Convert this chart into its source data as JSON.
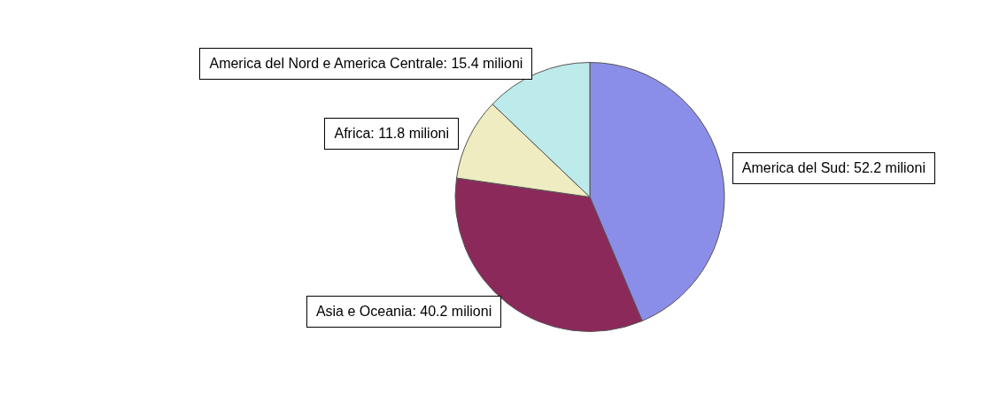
{
  "chart_data": {
    "type": "pie",
    "categories": [
      "America del Sud",
      "Asia e Oceania",
      "Africa",
      "America del Nord e America Centrale"
    ],
    "values": [
      52.2,
      40.2,
      11.8,
      15.4
    ],
    "value_labels": [
      "52.2 milioni",
      "40.2 milioni",
      "11.8 milioni",
      "15.4 milioni"
    ],
    "colors": [
      "#8b8ee8",
      "#8b2a5a",
      "#eeecc0",
      "#bdeaea"
    ],
    "legend": false
  }
}
